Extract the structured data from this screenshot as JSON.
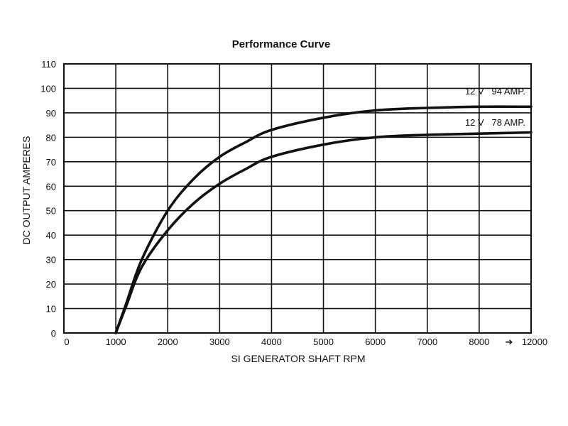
{
  "chart_data": {
    "type": "line",
    "title": "Performance Curve",
    "xlabel": "SI GENERATOR SHAFT RPM",
    "ylabel": "DC OUTPUT AMPERES",
    "x_ticks": [
      "0",
      "1000",
      "2000",
      "3000",
      "4000",
      "5000",
      "6000",
      "7000",
      "8000"
    ],
    "x_tick_end_arrow": "➔",
    "x_tick_end_label": "12000",
    "xlim": [
      0,
      9000
    ],
    "y_ticks": [
      0,
      10,
      20,
      30,
      40,
      50,
      60,
      70,
      80,
      90,
      100,
      110
    ],
    "ylim": [
      0,
      110
    ],
    "grid": true,
    "series": [
      {
        "name": "12 V   94 AMP.",
        "x": [
          1000,
          1200,
          1500,
          2000,
          2500,
          3000,
          3500,
          4000,
          5000,
          6000,
          7000,
          8000,
          9000
        ],
        "y": [
          0,
          12,
          30,
          50,
          63,
          72,
          78,
          83,
          88,
          91,
          92,
          92.5,
          92.5
        ]
      },
      {
        "name": "12 V   78 AMP.",
        "x": [
          1000,
          1200,
          1500,
          2000,
          2500,
          3000,
          3500,
          4000,
          5000,
          6000,
          7000,
          8000,
          9000
        ],
        "y": [
          0,
          11,
          27,
          42,
          53,
          61,
          67,
          72,
          77,
          80,
          81,
          81.5,
          82
        ]
      }
    ]
  }
}
